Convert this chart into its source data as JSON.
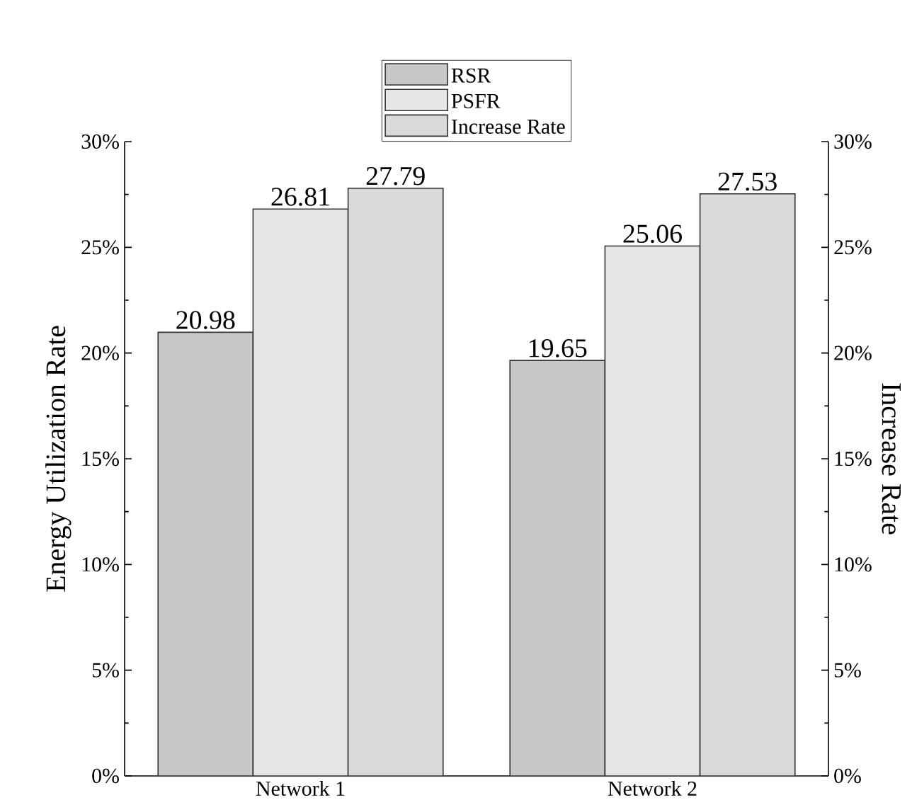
{
  "chart_data": {
    "type": "bar",
    "ylabel": "Energy Utilization Rate",
    "y2label": "Increase Rate",
    "categories": [
      "Network 1",
      "Network 2"
    ],
    "series": [
      {
        "name": "RSR",
        "color": "#c8c8c8",
        "values": [
          20.98,
          19.65
        ]
      },
      {
        "name": "PSFR",
        "color": "#e6e6e6",
        "values": [
          26.81,
          25.06
        ]
      },
      {
        "name": "Increase Rate",
        "color": "#d9d9d9",
        "values": [
          27.79,
          27.53
        ],
        "axis": "y2"
      }
    ],
    "ylim": [
      0,
      30
    ],
    "yticks": [
      {
        "value": 0,
        "label": "0%"
      },
      {
        "value": 5,
        "label": "5%"
      },
      {
        "value": 10,
        "label": "10%"
      },
      {
        "value": 15,
        "label": "15%"
      },
      {
        "value": 20,
        "label": "20%"
      },
      {
        "value": 25,
        "label": "25%"
      },
      {
        "value": 30,
        "label": "30%"
      }
    ],
    "y2lim": [
      0,
      30
    ],
    "y2ticks": [
      {
        "value": 0,
        "label": "0%"
      },
      {
        "value": 5,
        "label": "5%"
      },
      {
        "value": 10,
        "label": "10%"
      },
      {
        "value": 15,
        "label": "15%"
      },
      {
        "value": 20,
        "label": "20%"
      },
      {
        "value": 25,
        "label": "25%"
      },
      {
        "value": 30,
        "label": "30%"
      }
    ],
    "data_labels": true,
    "legend": "top",
    "grid": false
  }
}
